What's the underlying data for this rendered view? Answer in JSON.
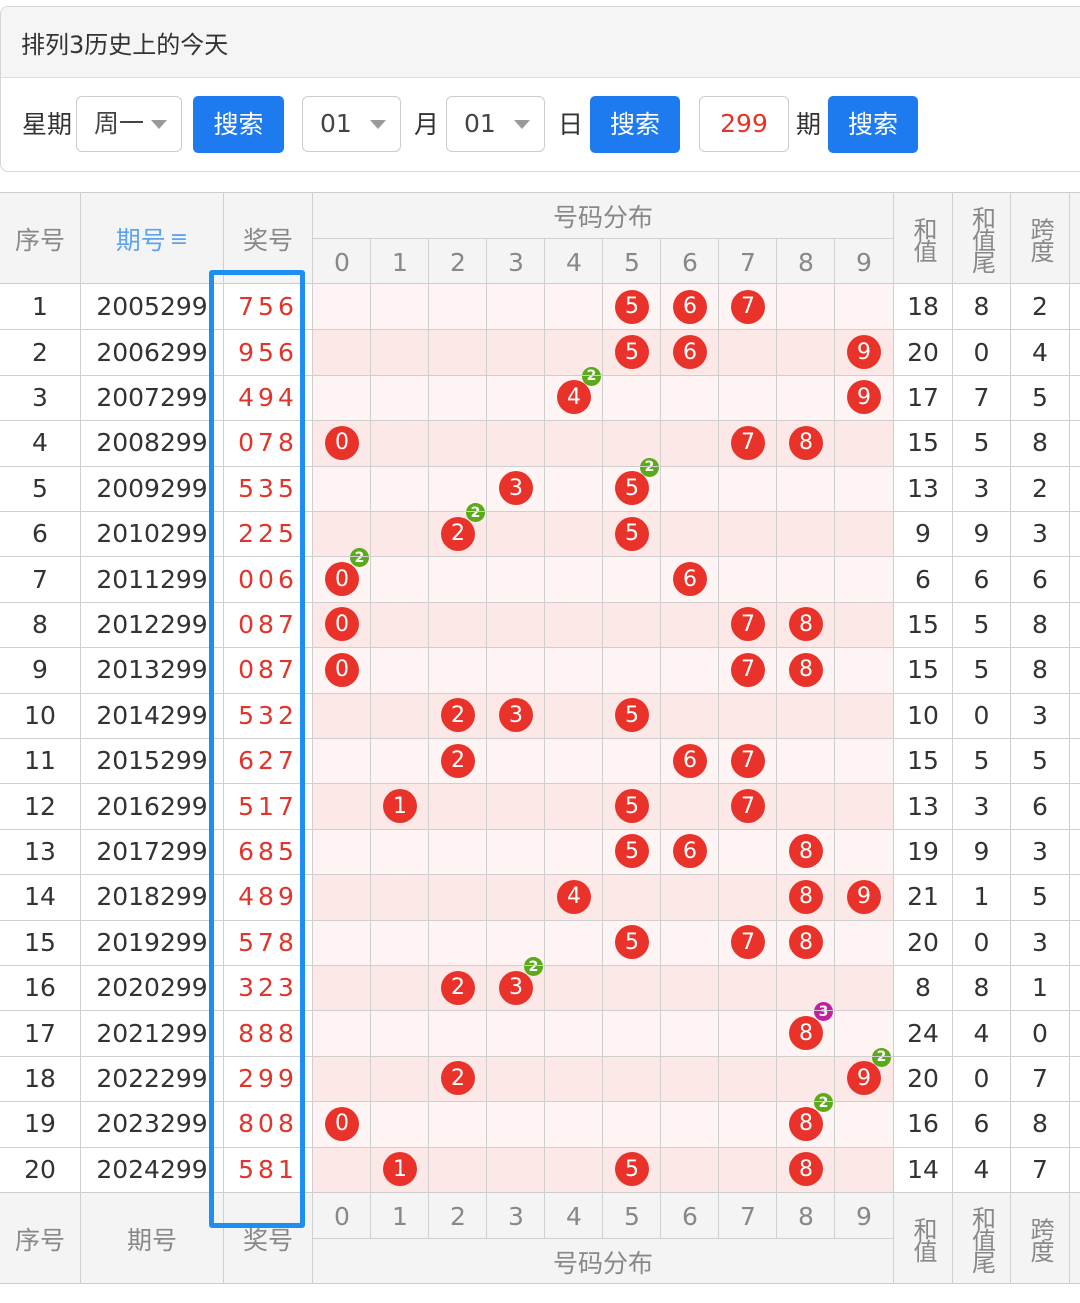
{
  "panel": {
    "title": "排列3历史上的今天",
    "weekday_label": "星期",
    "weekday_value": "周一",
    "search_label": "搜索",
    "month_value": "01",
    "month_label": "月",
    "day_value": "01",
    "day_label": "日",
    "issue_value": "299",
    "issue_label": "期"
  },
  "table": {
    "col_index": "序号",
    "col_issue": "期号",
    "col_issue_sort_icon": "sort-icon",
    "col_award": "奖号",
    "col_distribution": "号码分布",
    "col_sum": "和值",
    "col_sum_tail": "和值尾",
    "col_span": "跨度",
    "digits": [
      "0",
      "1",
      "2",
      "3",
      "4",
      "5",
      "6",
      "7",
      "8",
      "9"
    ],
    "colors": {
      "ball": "#e8322a",
      "badge2": "#5aaa1a",
      "badge3": "#c020a0",
      "accent": "#1e7bef"
    },
    "rows": [
      {
        "idx": "1",
        "issue": "2005299",
        "award": "756",
        "d": [
          7,
          5,
          6
        ],
        "sum": "18",
        "tail": "8",
        "span": "2"
      },
      {
        "idx": "2",
        "issue": "2006299",
        "award": "956",
        "d": [
          9,
          5,
          6
        ],
        "sum": "20",
        "tail": "0",
        "span": "4"
      },
      {
        "idx": "3",
        "issue": "2007299",
        "award": "494",
        "d": [
          4,
          9,
          4
        ],
        "sum": "17",
        "tail": "7",
        "span": "5"
      },
      {
        "idx": "4",
        "issue": "2008299",
        "award": "078",
        "d": [
          0,
          7,
          8
        ],
        "sum": "15",
        "tail": "5",
        "span": "8"
      },
      {
        "idx": "5",
        "issue": "2009299",
        "award": "535",
        "d": [
          5,
          3,
          5
        ],
        "sum": "13",
        "tail": "3",
        "span": "2"
      },
      {
        "idx": "6",
        "issue": "2010299",
        "award": "225",
        "d": [
          2,
          2,
          5
        ],
        "sum": "9",
        "tail": "9",
        "span": "3"
      },
      {
        "idx": "7",
        "issue": "2011299",
        "award": "006",
        "d": [
          0,
          0,
          6
        ],
        "sum": "6",
        "tail": "6",
        "span": "6"
      },
      {
        "idx": "8",
        "issue": "2012299",
        "award": "087",
        "d": [
          0,
          8,
          7
        ],
        "sum": "15",
        "tail": "5",
        "span": "8"
      },
      {
        "idx": "9",
        "issue": "2013299",
        "award": "087",
        "d": [
          0,
          8,
          7
        ],
        "sum": "15",
        "tail": "5",
        "span": "8"
      },
      {
        "idx": "10",
        "issue": "2014299",
        "award": "532",
        "d": [
          5,
          3,
          2
        ],
        "sum": "10",
        "tail": "0",
        "span": "3"
      },
      {
        "idx": "11",
        "issue": "2015299",
        "award": "627",
        "d": [
          6,
          2,
          7
        ],
        "sum": "15",
        "tail": "5",
        "span": "5"
      },
      {
        "idx": "12",
        "issue": "2016299",
        "award": "517",
        "d": [
          5,
          1,
          7
        ],
        "sum": "13",
        "tail": "3",
        "span": "6"
      },
      {
        "idx": "13",
        "issue": "2017299",
        "award": "685",
        "d": [
          6,
          8,
          5
        ],
        "sum": "19",
        "tail": "9",
        "span": "3"
      },
      {
        "idx": "14",
        "issue": "2018299",
        "award": "489",
        "d": [
          4,
          8,
          9
        ],
        "sum": "21",
        "tail": "1",
        "span": "5"
      },
      {
        "idx": "15",
        "issue": "2019299",
        "award": "578",
        "d": [
          5,
          7,
          8
        ],
        "sum": "20",
        "tail": "0",
        "span": "3"
      },
      {
        "idx": "16",
        "issue": "2020299",
        "award": "323",
        "d": [
          3,
          2,
          3
        ],
        "sum": "8",
        "tail": "8",
        "span": "1"
      },
      {
        "idx": "17",
        "issue": "2021299",
        "award": "888",
        "d": [
          8,
          8,
          8
        ],
        "sum": "24",
        "tail": "4",
        "span": "0"
      },
      {
        "idx": "18",
        "issue": "2022299",
        "award": "299",
        "d": [
          2,
          9,
          9
        ],
        "sum": "20",
        "tail": "0",
        "span": "7"
      },
      {
        "idx": "19",
        "issue": "2023299",
        "award": "808",
        "d": [
          8,
          0,
          8
        ],
        "sum": "16",
        "tail": "6",
        "span": "8"
      },
      {
        "idx": "20",
        "issue": "2024299",
        "award": "581",
        "d": [
          5,
          8,
          1
        ],
        "sum": "14",
        "tail": "4",
        "span": "7"
      }
    ]
  }
}
